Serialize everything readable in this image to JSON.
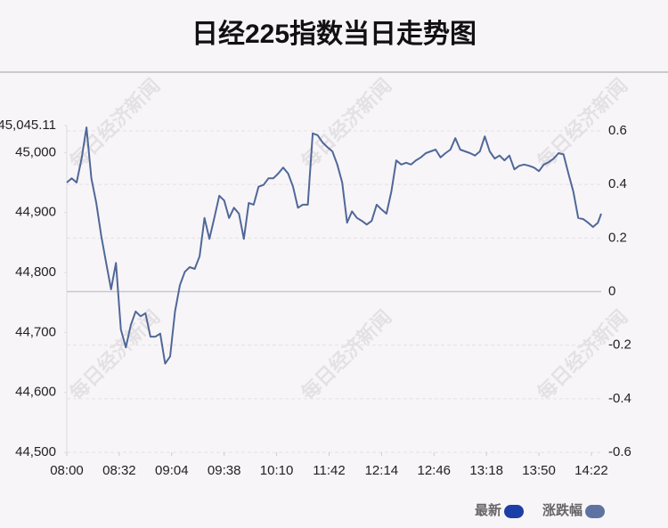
{
  "chart_data": {
    "type": "line",
    "title": "日经225指数当日走势图",
    "watermark": "每日经济新闻",
    "legend_items": [
      {
        "name": "最新",
        "color": "#1b3fa6"
      },
      {
        "name": "涨跌幅",
        "color": "#5f73a3"
      }
    ],
    "xlim": [
      0,
      326
    ],
    "xticks": [
      {
        "value": 0,
        "label": "08:00"
      },
      {
        "value": 32,
        "label": "08:32"
      },
      {
        "value": 64,
        "label": "09:04"
      },
      {
        "value": 96,
        "label": "09:38"
      },
      {
        "value": 128,
        "label": "10:10"
      },
      {
        "value": 160,
        "label": "11:42"
      },
      {
        "value": 192,
        "label": "12:14"
      },
      {
        "value": 224,
        "label": "12:46"
      },
      {
        "value": 256,
        "label": "13:18"
      },
      {
        "value": 288,
        "label": "13:50"
      },
      {
        "value": 320,
        "label": "14:22"
      }
    ],
    "ylim": [
      44500,
      45045.11
    ],
    "yticks": [
      {
        "value": 44500,
        "label": "44,500"
      },
      {
        "value": 44600,
        "label": "44,600"
      },
      {
        "value": 44700,
        "label": "44,700"
      },
      {
        "value": 44800,
        "label": "44,800"
      },
      {
        "value": 44900,
        "label": "44,900"
      },
      {
        "value": 45000,
        "label": "45,000"
      },
      {
        "value": 45045.11,
        "label": "45,045.11"
      }
    ],
    "y2lim": [
      -0.6,
      0.62
    ],
    "y2ticks": [
      -0.6,
      -0.4,
      -0.2,
      0,
      0.2,
      0.4,
      0.6
    ],
    "grid": true,
    "series": [
      {
        "name": "最新",
        "color": "#4f6898",
        "x": [
          0,
          3,
          6,
          9,
          12,
          15,
          18,
          21,
          24,
          27,
          30,
          33,
          36,
          39,
          42,
          45,
          48,
          51,
          54,
          57,
          60,
          63,
          66,
          69,
          72,
          75,
          78,
          81,
          84,
          87,
          90,
          93,
          96,
          99,
          102,
          105,
          108,
          111,
          114,
          117,
          120,
          123,
          126,
          129,
          132,
          135,
          138,
          141,
          144,
          147,
          150,
          153,
          156,
          159,
          162,
          165,
          168,
          171,
          174,
          177,
          180,
          183,
          186,
          189,
          192,
          195,
          198,
          201,
          204,
          207,
          210,
          213,
          216,
          219,
          222,
          225,
          228,
          231,
          234,
          237,
          240,
          243,
          246,
          249,
          252,
          255,
          258,
          261,
          264,
          267,
          270,
          273,
          276,
          279,
          282,
          285,
          288,
          291,
          294,
          297,
          300,
          303,
          306,
          309,
          312,
          315,
          318,
          321,
          324,
          326
        ],
        "values": [
          44950,
          44957,
          44950,
          44990,
          45042,
          44957,
          44916,
          44861,
          44816,
          44772,
          44816,
          44705,
          44675,
          44712,
          44735,
          44727,
          44732,
          44693,
          44693,
          44698,
          44648,
          44660,
          44735,
          44779,
          44801,
          44809,
          44806,
          44827,
          44891,
          44856,
          44891,
          44928,
          44920,
          44891,
          44908,
          44898,
          44856,
          44916,
          44913,
          44943,
          44946,
          44957,
          44957,
          44965,
          44975,
          44965,
          44943,
          44908,
          44913,
          44913,
          45032,
          45029,
          45017,
          45009,
          45002,
          44980,
          44950,
          44883,
          44902,
          44891,
          44886,
          44880,
          44886,
          44913,
          44905,
          44898,
          44935,
          44987,
          44980,
          44983,
          44980,
          44987,
          44992,
          44999,
          45002,
          45005,
          44992,
          44999,
          45005,
          45024,
          45005,
          45002,
          44999,
          44995,
          45002,
          45027,
          45002,
          44990,
          44995,
          44987,
          44995,
          44972,
          44978,
          44980,
          44978,
          44975,
          44969,
          44980,
          44984,
          44990,
          44999,
          44997,
          44965,
          44935,
          44891,
          44889,
          44883,
          44876,
          44883,
          44898
        ]
      }
    ]
  }
}
